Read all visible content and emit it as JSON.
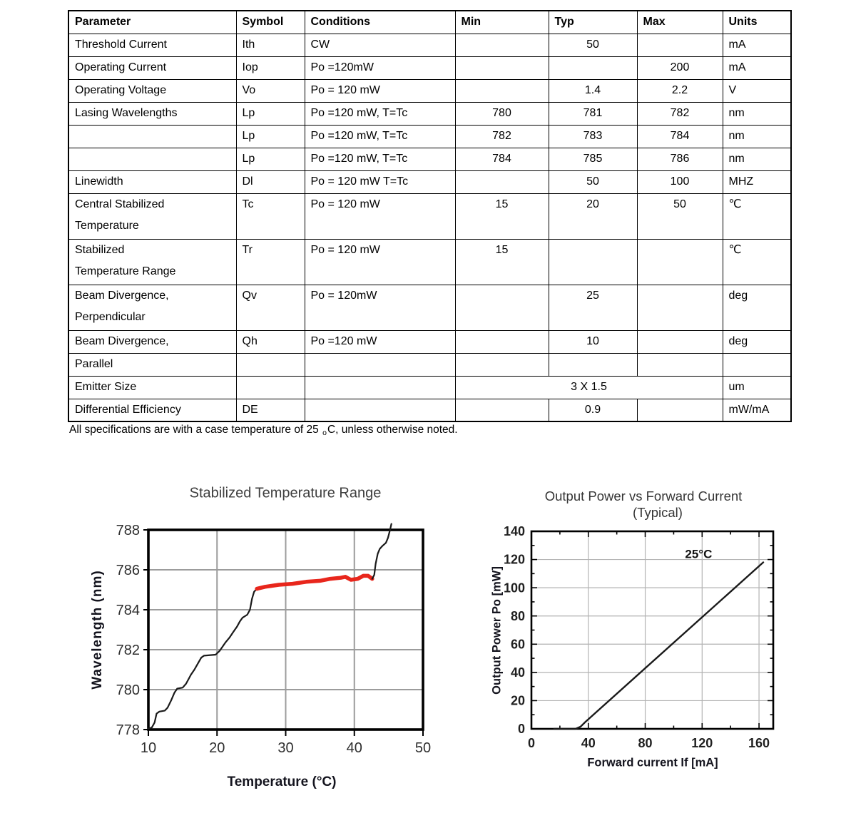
{
  "table": {
    "columns": [
      "Parameter",
      "Symbol",
      "Conditions",
      "Min",
      "Typ",
      "Max",
      "Units"
    ],
    "rows": [
      {
        "parameter": "Threshold Current",
        "symbol": "Ith",
        "conditions": "CW",
        "min": "",
        "typ": "50",
        "max": "",
        "units": "mA"
      },
      {
        "parameter": "Operating Current",
        "symbol": "Iop",
        "conditions": "Po =120mW",
        "min": "",
        "typ": "",
        "max": "200",
        "units": "mA"
      },
      {
        "parameter": "Operating Voltage",
        "symbol": "Vo",
        "conditions": "Po = 120 mW",
        "min": "",
        "typ": "1.4",
        "max": "2.2",
        "units": "V"
      },
      {
        "parameter": "Lasing Wavelengths",
        "symbol": "Lp",
        "conditions": "Po =120 mW, T=Tc",
        "min": "780",
        "typ": "781",
        "max": "782",
        "units": "nm"
      },
      {
        "parameter": "",
        "symbol": "Lp",
        "conditions": "Po =120 mW, T=Tc",
        "min": "782",
        "typ": "783",
        "max": "784",
        "units": "nm"
      },
      {
        "parameter": "",
        "symbol": "Lp",
        "conditions": "Po =120 mW, T=Tc",
        "min": "784",
        "typ": "785",
        "max": "786",
        "units": "nm"
      },
      {
        "parameter": "Linewidth",
        "symbol": "Dl",
        "conditions": "Po = 120 mW T=Tc",
        "min": "",
        "typ": "50",
        "max": "100",
        "units": "MHZ"
      },
      {
        "parameter": "Central Stabilized\nTemperature",
        "symbol": "Tc",
        "conditions": "Po = 120 mW",
        "min": "15",
        "typ": "20",
        "max": "50",
        "units": "℃"
      },
      {
        "parameter": "Stabilized\nTemperature Range",
        "symbol": "Tr",
        "conditions": "Po = 120 mW",
        "min": "15",
        "typ": "",
        "max": "",
        "units": "℃"
      },
      {
        "parameter": "Beam Divergence,\nPerpendicular",
        "symbol": "Qv",
        "conditions": "Po = 120mW",
        "min": "",
        "typ": "25",
        "max": "",
        "units": "deg"
      },
      {
        "parameter": "Beam Divergence,",
        "symbol": "Qh",
        "conditions": "Po =120 mW",
        "min": "",
        "typ": "10",
        "max": "",
        "units": "deg"
      },
      {
        "parameter": "Parallel",
        "symbol": "",
        "conditions": "",
        "min": "",
        "typ": "",
        "max": "",
        "units": ""
      },
      {
        "parameter": "Emitter Size",
        "symbol": "",
        "conditions": "",
        "merged": "3 X 1.5",
        "units": "um"
      },
      {
        "parameter": "Differential Efficiency",
        "symbol": "DE",
        "conditions": "",
        "min": "",
        "typ": "0.9",
        "max": "",
        "units": "mW/mA"
      }
    ]
  },
  "note": {
    "pre": "All specifications are with a case temperature of 25 ",
    "sub": "o",
    "post": "C, unless otherwise noted."
  },
  "chart_data": [
    {
      "id": "left",
      "type": "line",
      "title": "Stabilized Temperature Range",
      "xlabel": "Temperature (°C)",
      "ylabel": "Wavelength (nm)",
      "xlim": [
        10,
        50
      ],
      "ylim": [
        778,
        788
      ],
      "xticks": [
        10,
        20,
        30,
        40,
        50
      ],
      "yticks": [
        778,
        780,
        782,
        784,
        786,
        788
      ],
      "grid": true,
      "legend": "none",
      "series": [
        {
          "name": "wavelength-rise-black",
          "color": "#1a1a1a",
          "width": 2.2,
          "points": [
            [
              10,
              778.05
            ],
            [
              10.5,
              778.1
            ],
            [
              10.9,
              778.35
            ],
            [
              11.2,
              778.8
            ],
            [
              11.6,
              778.9
            ],
            [
              12.4,
              778.95
            ],
            [
              12.8,
              779.1
            ],
            [
              13.3,
              779.45
            ],
            [
              13.8,
              779.85
            ],
            [
              14.2,
              780.05
            ],
            [
              15.0,
              780.1
            ],
            [
              15.5,
              780.3
            ],
            [
              16.2,
              780.75
            ],
            [
              16.7,
              781.0
            ],
            [
              17.2,
              781.3
            ],
            [
              17.7,
              781.6
            ],
            [
              18.1,
              781.7
            ],
            [
              19.8,
              781.75
            ],
            [
              20.4,
              781.95
            ],
            [
              21.2,
              782.35
            ],
            [
              21.8,
              782.6
            ],
            [
              22.4,
              782.9
            ],
            [
              22.9,
              783.15
            ],
            [
              23.3,
              783.4
            ],
            [
              23.7,
              783.6
            ],
            [
              24.4,
              783.75
            ],
            [
              24.8,
              784.0
            ],
            [
              25.1,
              784.55
            ],
            [
              25.4,
              784.9
            ],
            [
              25.8,
              785.05
            ]
          ]
        },
        {
          "name": "stabilized-range-red",
          "color": "#e8261c",
          "width": 5.5,
          "points": [
            [
              25.8,
              785.05
            ],
            [
              27.0,
              785.15
            ],
            [
              29.0,
              785.25
            ],
            [
              31.0,
              785.3
            ],
            [
              33.0,
              785.4
            ],
            [
              35.0,
              785.45
            ],
            [
              36.5,
              785.55
            ],
            [
              38.0,
              785.6
            ],
            [
              38.7,
              785.65
            ],
            [
              39.5,
              785.5
            ],
            [
              40.5,
              785.55
            ],
            [
              41.3,
              785.7
            ],
            [
              42.0,
              785.7
            ],
            [
              42.6,
              785.55
            ]
          ]
        },
        {
          "name": "wavelength-tail-black",
          "color": "#1a1a1a",
          "width": 2.2,
          "points": [
            [
              42.6,
              785.55
            ],
            [
              42.9,
              785.75
            ],
            [
              43.1,
              786.3
            ],
            [
              43.4,
              786.8
            ],
            [
              43.7,
              787.05
            ],
            [
              44.1,
              787.2
            ],
            [
              44.6,
              787.35
            ],
            [
              44.9,
              787.6
            ],
            [
              45.2,
              788.0
            ],
            [
              45.4,
              788.3
            ]
          ]
        }
      ],
      "annotations": []
    },
    {
      "id": "right",
      "type": "line",
      "title": "Output Power vs Forward Current",
      "subtitle": "(Typical)",
      "xlabel": "Forward current If [mA]",
      "ylabel": "Output Power Po [mW]",
      "xlim": [
        0,
        170
      ],
      "ylim": [
        0,
        140
      ],
      "xticks": [
        0,
        40,
        80,
        120,
        160
      ],
      "yticks": [
        0,
        20,
        40,
        60,
        80,
        100,
        120,
        140
      ],
      "xminor": 20,
      "yminor": 10,
      "grid": true,
      "legend": "none",
      "series": [
        {
          "name": "li-curve-25c",
          "color": "#1a1a1a",
          "width": 2.4,
          "points": [
            [
              16,
              0
            ],
            [
              31,
              0
            ],
            [
              34.5,
              1.5
            ],
            [
              38,
              5
            ],
            [
              163,
              118
            ]
          ]
        }
      ],
      "annotations": [
        {
          "text": "25°C",
          "x": 108,
          "y": 121,
          "size": 17,
          "weight": 700,
          "color": "#111111"
        }
      ]
    }
  ]
}
